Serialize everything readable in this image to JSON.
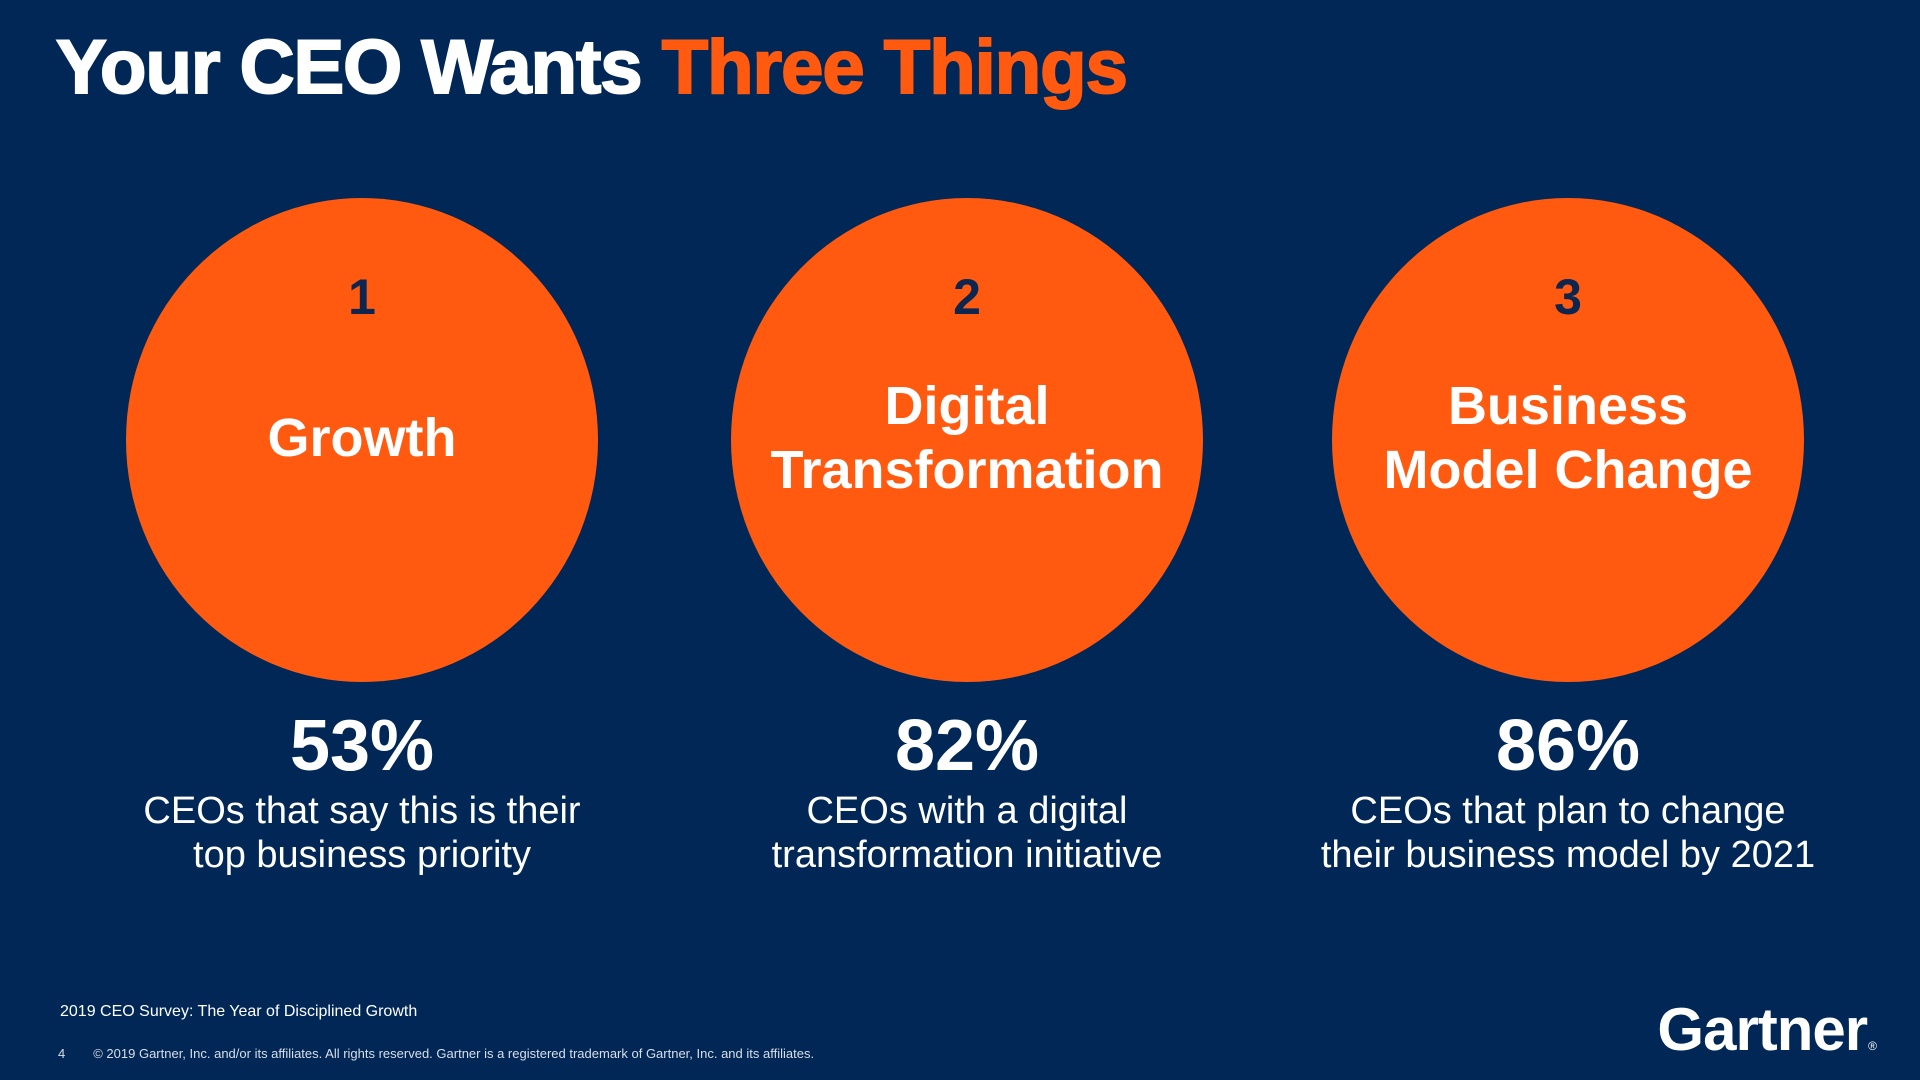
{
  "slide": {
    "title_part1": "Your CEO Wants",
    "title_part2": "Three Things",
    "accent_color": "#ff5a0f",
    "background_color": "#012756"
  },
  "pillars": [
    {
      "number": "1",
      "label": "Growth",
      "stat": "53%",
      "description": "CEOs that say this is their\ntop business priority"
    },
    {
      "number": "2",
      "label": "Digital\nTransformation",
      "stat": "82%",
      "description": "CEOs with a digital\ntransformation initiative"
    },
    {
      "number": "3",
      "label": "Business\nModel Change",
      "stat": "86%",
      "description": "CEOs that plan to change\ntheir business model by 2021"
    }
  ],
  "footer": {
    "source": "2019 CEO Survey: The Year of Disciplined Growth",
    "page_number": "4",
    "copyright": "© 2019 Gartner, Inc. and/or its affiliates. All rights reserved. Gartner is a registered trademark of Gartner, Inc. and its affiliates.",
    "logo_text": "Gartner",
    "logo_mark": "®"
  }
}
